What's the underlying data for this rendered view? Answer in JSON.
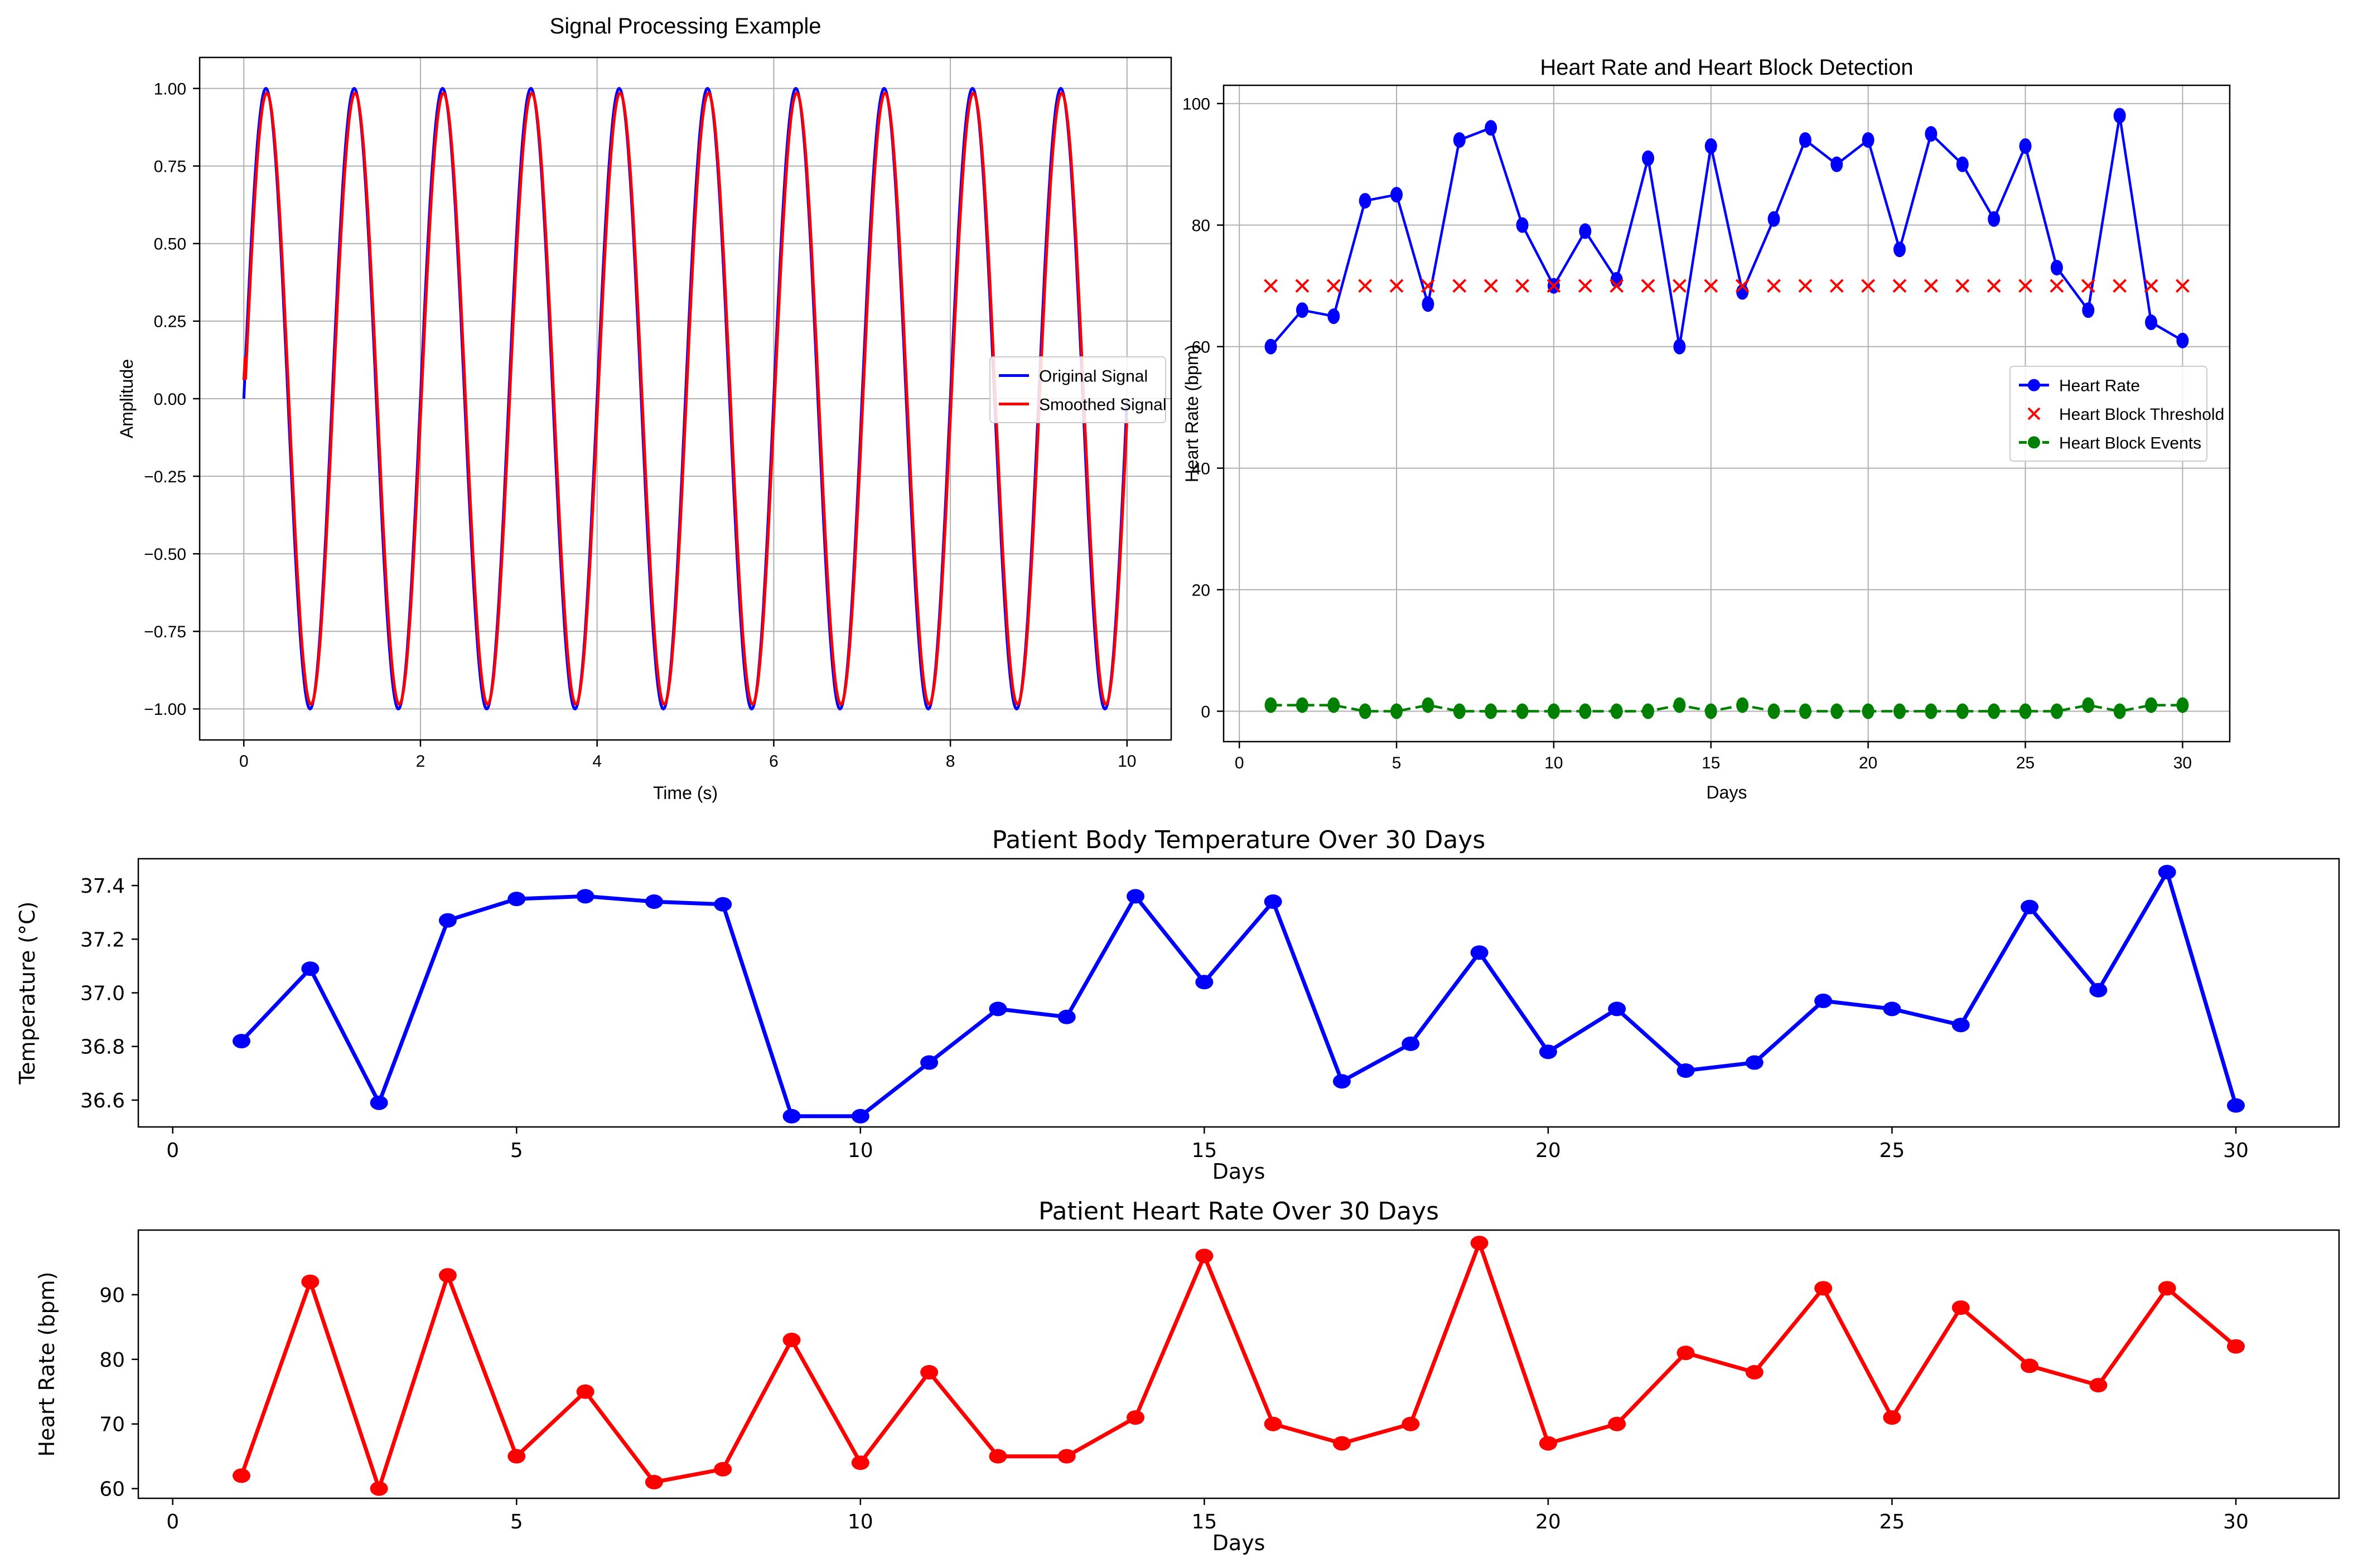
{
  "chart_data": [
    {
      "id": "signal",
      "type": "line",
      "title": "Signal Processing Example",
      "xlabel": "Time (s)",
      "ylabel": "Amplitude",
      "xlim": [
        -0.5,
        10.5
      ],
      "ylim": [
        -1.1,
        1.1
      ],
      "xticks": [
        0,
        2,
        4,
        6,
        8,
        10
      ],
      "xtick_labels": [
        "0",
        "2",
        "4",
        "6",
        "8",
        "10"
      ],
      "yticks": [
        1.0,
        0.75,
        0.5,
        0.25,
        0.0,
        -0.25,
        -0.5,
        -0.75,
        -1.0
      ],
      "ytick_labels": [
        "1.00",
        "0.75",
        "0.50",
        "0.25",
        "0.00",
        "−0.25",
        "−0.50",
        "−0.75",
        "−1.00"
      ],
      "grid": true,
      "legend_position": "center-right",
      "function": "sin(2*pi*1*t)",
      "t_range": [
        0,
        10
      ],
      "frequency_hz": 1,
      "series": [
        {
          "name": "Original Signal",
          "color": "#0000ff",
          "kind": "sine"
        },
        {
          "name": "Smoothed Signal",
          "color": "#ff0000",
          "kind": "moving-average-sine",
          "amplitude": 0.985,
          "phase_shift": 0.01
        }
      ]
    },
    {
      "id": "heart_block",
      "type": "line",
      "title": "Heart Rate and Heart Block Detection",
      "xlabel": "Days",
      "ylabel": "Heart Rate (bpm)",
      "xlim": [
        -0.5,
        31.5
      ],
      "ylim": [
        -5,
        103
      ],
      "xticks": [
        0,
        5,
        10,
        15,
        20,
        25,
        30
      ],
      "xtick_labels": [
        "0",
        "5",
        "10",
        "15",
        "20",
        "25",
        "30"
      ],
      "yticks": [
        0,
        20,
        40,
        60,
        80,
        100
      ],
      "ytick_labels": [
        "0",
        "20",
        "40",
        "60",
        "80",
        "100"
      ],
      "grid": true,
      "legend_position": "center-right",
      "x": [
        1,
        2,
        3,
        4,
        5,
        6,
        7,
        8,
        9,
        10,
        11,
        12,
        13,
        14,
        15,
        16,
        17,
        18,
        19,
        20,
        21,
        22,
        23,
        24,
        25,
        26,
        27,
        28,
        29,
        30
      ],
      "series": [
        {
          "name": "Heart Rate",
          "color": "#0000ff",
          "style": "solid-line-dots",
          "values": [
            60,
            66,
            65,
            84,
            85,
            67,
            94,
            96,
            80,
            70,
            79,
            71,
            91,
            60,
            93,
            69,
            81,
            94,
            90,
            94,
            76,
            95,
            90,
            81,
            93,
            73,
            66,
            98,
            64,
            61
          ]
        },
        {
          "name": "Heart Block Threshold",
          "color": "#ff0000",
          "style": "x-markers",
          "values": [
            70,
            70,
            70,
            70,
            70,
            70,
            70,
            70,
            70,
            70,
            70,
            70,
            70,
            70,
            70,
            70,
            70,
            70,
            70,
            70,
            70,
            70,
            70,
            70,
            70,
            70,
            70,
            70,
            70,
            70
          ]
        },
        {
          "name": "Heart Block Events",
          "color": "#008000",
          "style": "dashed-line-dots",
          "values": [
            1,
            1,
            1,
            0,
            0,
            1,
            0,
            0,
            0,
            0,
            0,
            0,
            0,
            1,
            0,
            1,
            0,
            0,
            0,
            0,
            0,
            0,
            0,
            0,
            0,
            0,
            1,
            0,
            1,
            1
          ]
        }
      ]
    },
    {
      "id": "temperature",
      "type": "line",
      "title": "Patient Body Temperature Over 30 Days",
      "xlabel": "Days",
      "ylabel": "Temperature (°C)",
      "xlim": [
        -0.5,
        31.5
      ],
      "ylim": [
        36.5,
        37.5
      ],
      "xticks": [
        0,
        5,
        10,
        15,
        20,
        25,
        30
      ],
      "xtick_labels": [
        "0",
        "5",
        "10",
        "15",
        "20",
        "25",
        "30"
      ],
      "yticks": [
        36.6,
        36.8,
        37.0,
        37.2,
        37.4
      ],
      "ytick_labels": [
        "36.6",
        "36.8",
        "37.0",
        "37.2",
        "37.4"
      ],
      "grid": false,
      "x": [
        1,
        2,
        3,
        4,
        5,
        6,
        7,
        8,
        9,
        10,
        11,
        12,
        13,
        14,
        15,
        16,
        17,
        18,
        19,
        20,
        21,
        22,
        23,
        24,
        25,
        26,
        27,
        28,
        29,
        30
      ],
      "series": [
        {
          "color": "#0000ff",
          "values": [
            36.82,
            37.09,
            36.59,
            37.27,
            37.35,
            37.36,
            37.34,
            37.33,
            36.54,
            36.54,
            36.74,
            36.94,
            36.91,
            37.36,
            37.04,
            37.34,
            36.67,
            36.81,
            37.15,
            36.78,
            36.94,
            36.71,
            36.74,
            36.97,
            36.94,
            36.88,
            37.32,
            37.01,
            37.45,
            36.58
          ]
        }
      ]
    },
    {
      "id": "heart_rate",
      "type": "line",
      "title": "Patient Heart Rate Over 30 Days",
      "xlabel": "Days",
      "ylabel": "Heart Rate (bpm)",
      "xlim": [
        -0.5,
        31.5
      ],
      "ylim": [
        58.5,
        100
      ],
      "xticks": [
        0,
        5,
        10,
        15,
        20,
        25,
        30
      ],
      "xtick_labels": [
        "0",
        "5",
        "10",
        "15",
        "20",
        "25",
        "30"
      ],
      "yticks": [
        60,
        70,
        80,
        90
      ],
      "ytick_labels": [
        "60",
        "70",
        "80",
        "90"
      ],
      "grid": false,
      "x": [
        1,
        2,
        3,
        4,
        5,
        6,
        7,
        8,
        9,
        10,
        11,
        12,
        13,
        14,
        15,
        16,
        17,
        18,
        19,
        20,
        21,
        22,
        23,
        24,
        25,
        26,
        27,
        28,
        29,
        30
      ],
      "series": [
        {
          "color": "#ff0000",
          "values": [
            62,
            92,
            60,
            93,
            65,
            75,
            61,
            63,
            83,
            64,
            78,
            65,
            65,
            71,
            96,
            70,
            67,
            70,
            98,
            67,
            70,
            81,
            78,
            91,
            71,
            88,
            79,
            76,
            91,
            82
          ]
        }
      ]
    }
  ]
}
